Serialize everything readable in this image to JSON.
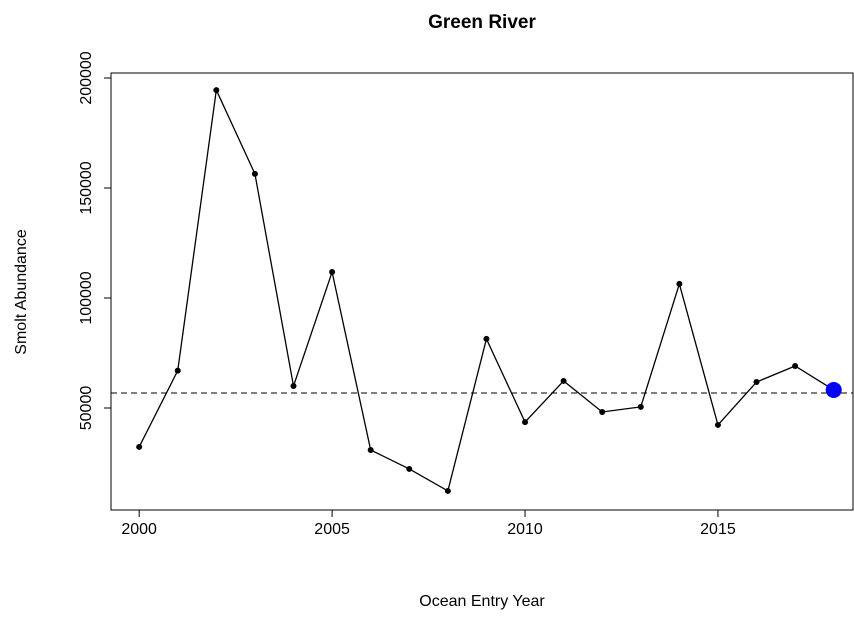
{
  "chart_data": {
    "type": "line",
    "title": "Green River",
    "x_label": "Ocean Entry Year",
    "y_label": "Smolt Abundance",
    "x": [
      2000,
      2001,
      2002,
      2003,
      2004,
      2005,
      2006,
      2007,
      2008,
      2009,
      2010,
      2011,
      2012,
      2013,
      2014,
      2015,
      2016,
      2017,
      2018
    ],
    "series": [
      {
        "color": "#000000",
        "values": [
          32300,
          67000,
          194500,
          156400,
          60000,
          111800,
          30900,
          22300,
          12300,
          81400,
          43600,
          62300,
          48200,
          50500,
          106400,
          42300,
          61800,
          69100,
          58200
        ]
      }
    ],
    "highlight_color": "#0000ff",
    "hline": 56800,
    "hline_style": "dashed",
    "xlim": [
      1999.27,
      2018.5
    ],
    "xticks": [
      2000,
      2005,
      2010,
      2015
    ],
    "ylim": [
      3636,
      202270
    ],
    "yticks": [
      50000,
      100000,
      150000,
      200000
    ]
  }
}
